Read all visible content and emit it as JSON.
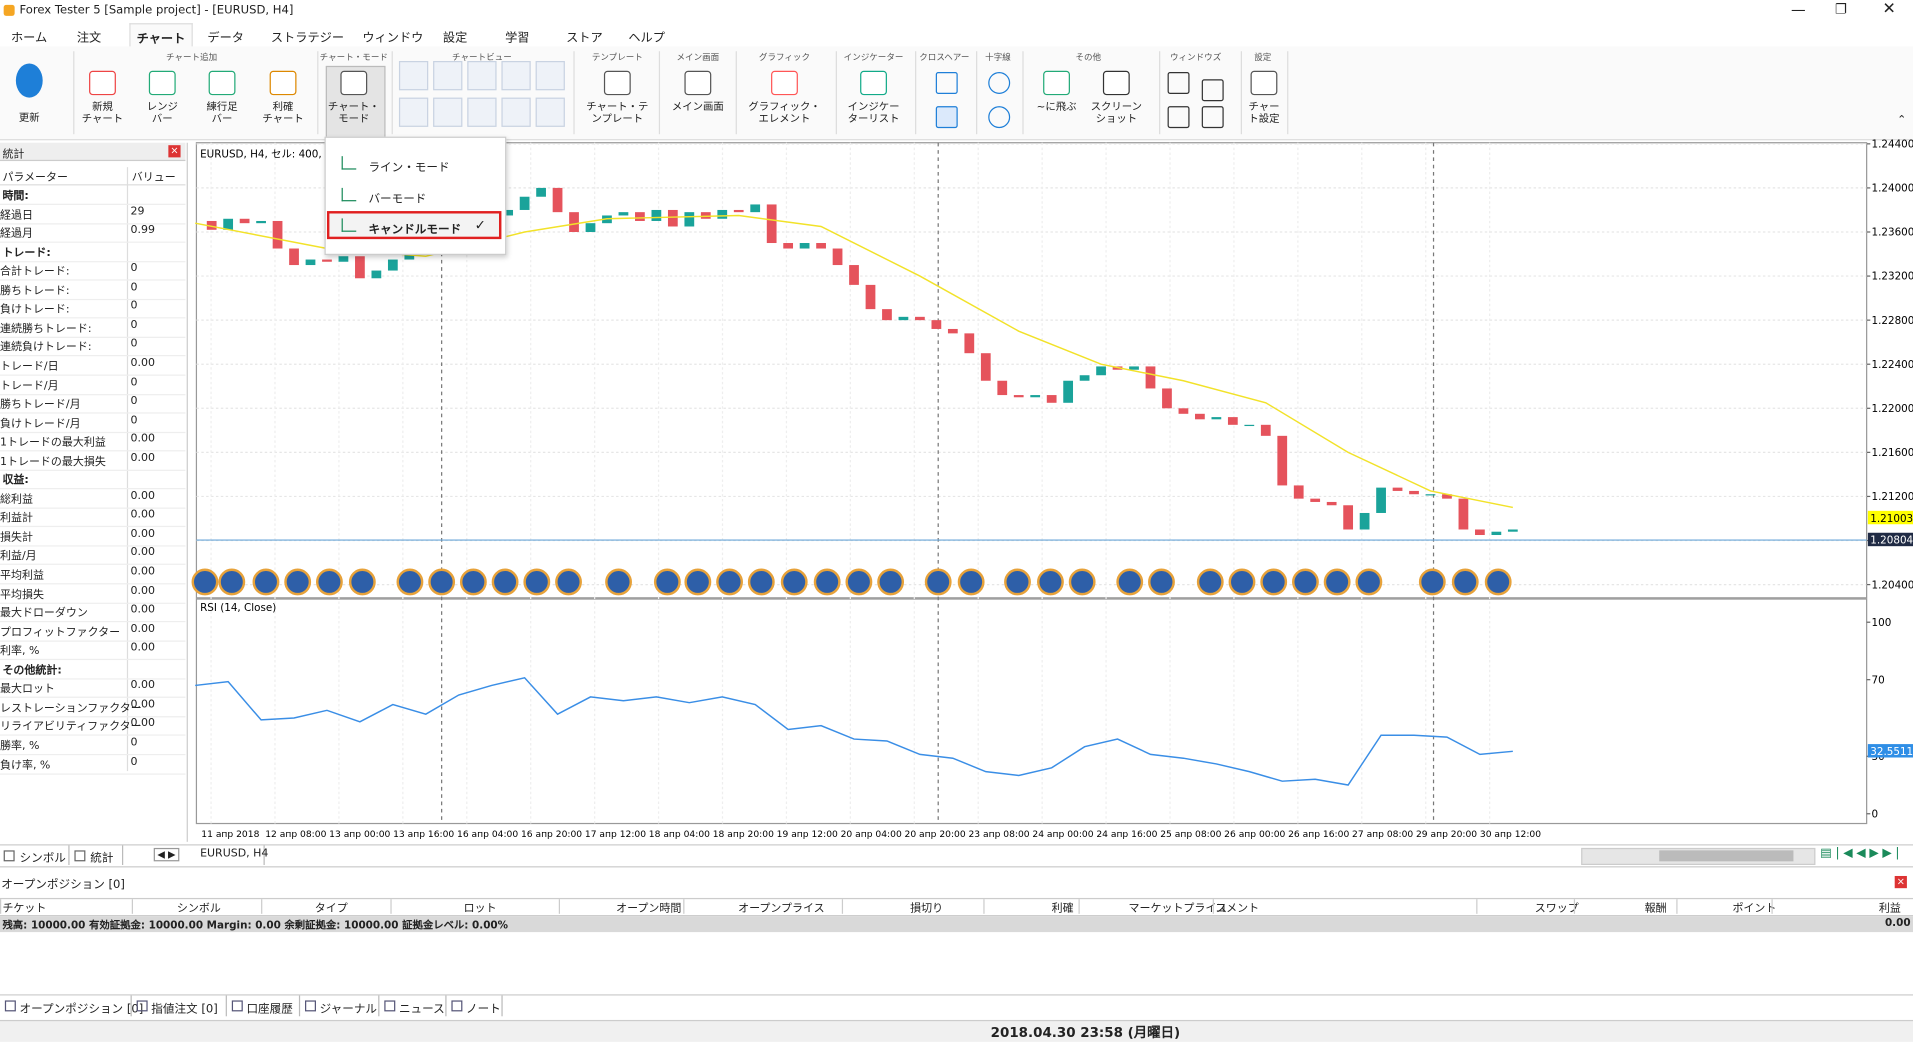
{
  "window": {
    "title": "Forex Tester 5 [Sample project] - [EURUSD, H4]"
  },
  "menu": [
    {
      "label": "ホーム"
    },
    {
      "label": "注文"
    },
    {
      "label": "チャート",
      "active": true
    },
    {
      "label": "データ"
    },
    {
      "label": "ストラテジー"
    },
    {
      "label": "ウィンドウ"
    },
    {
      "label": "設定"
    },
    {
      "label": "学習"
    },
    {
      "label": "ストア"
    },
    {
      "label": "ヘルプ"
    }
  ],
  "ribbon": {
    "groups": [
      "チャート追加",
      "チャート・モード",
      "チャートビュー",
      "テンプレート",
      "メイン画面",
      "グラフィック",
      "インジケーター",
      "クロスヘアー",
      "十字線",
      "その他",
      "ウィンドウズ",
      "設定"
    ],
    "buttons": [
      [
        "更新"
      ],
      [
        "新規",
        "チャート"
      ],
      [
        "レンジ",
        "バー"
      ],
      [
        "練行足",
        "バー"
      ],
      [
        "利確",
        "チャート"
      ],
      [
        "チャート・",
        "モード"
      ],
      [
        "チャート・テ",
        "ンプレート"
      ],
      [
        "メイン画面"
      ],
      [
        "グラフィック・",
        "エレメント"
      ],
      [
        "インジケー",
        "ターリスト"
      ],
      [
        "~に飛ぶ"
      ],
      [
        "スクリーン",
        "ショット"
      ],
      [
        "チャー",
        "ト設定"
      ]
    ]
  },
  "dropdown": [
    {
      "label": "ライン・モード"
    },
    {
      "label": "バーモード"
    },
    {
      "label": "キャンドルモード",
      "checked": true
    }
  ],
  "stats": {
    "title": "統計",
    "header": [
      "パラメーター",
      "バリュー"
    ],
    "rows": [
      {
        "section": "時間:"
      },
      {
        "label": "経過日",
        "value": "29"
      },
      {
        "label": "経過月",
        "value": "0.99"
      },
      {
        "section": "トレード:"
      },
      {
        "label": "合計トレード:",
        "value": "0"
      },
      {
        "label": "勝ちトレード:",
        "value": "0"
      },
      {
        "label": "負けトレード:",
        "value": "0"
      },
      {
        "label": "連続勝ちトレード:",
        "value": "0"
      },
      {
        "label": "連続負けトレード:",
        "value": "0"
      },
      {
        "label": "トレード/日",
        "value": "0.00"
      },
      {
        "label": "トレード/月",
        "value": "0"
      },
      {
        "label": "勝ちトレード/月",
        "value": "0"
      },
      {
        "label": "負けトレード/月",
        "value": "0"
      },
      {
        "label": "1トレードの最大利益",
        "value": "0.00"
      },
      {
        "label": "1トレードの最大損失",
        "value": "0.00"
      },
      {
        "section": "収益:"
      },
      {
        "label": "総利益",
        "value": "0.00"
      },
      {
        "label": "利益計",
        "value": "0.00"
      },
      {
        "label": "損失計",
        "value": "0.00"
      },
      {
        "label": "利益/月",
        "value": "0.00"
      },
      {
        "label": "平均利益",
        "value": "0.00"
      },
      {
        "label": "平均損失",
        "value": "0.00"
      },
      {
        "label": "最大ドローダウン",
        "value": "0.00"
      },
      {
        "label": "プロフィットファクター",
        "value": "0.00"
      },
      {
        "label": "利率, %",
        "value": "0.00"
      },
      {
        "section": "その他統計:"
      },
      {
        "label": "最大ロット",
        "value": "0.00"
      },
      {
        "label": "レストレーションファクター",
        "value": "0.00"
      },
      {
        "label": "リライアビリティファクター",
        "value": "0.00"
      },
      {
        "label": "勝率, %",
        "value": "0"
      },
      {
        "label": "負け率, %",
        "value": "0"
      }
    ]
  },
  "left_tabs": [
    "シンボル",
    "統計"
  ],
  "chart": {
    "type": "candlestick",
    "title": "EURUSD, H4, セル: 400,",
    "tab": "EURUSD, H4",
    "color_up": "#1aa39a",
    "color_down": "#e5535c",
    "closes": [
      1.237,
      1.2362,
      1.2372,
      1.2368,
      1.237,
      1.2345,
      1.233,
      1.2335,
      1.2333,
      1.2338,
      1.2318,
      1.2325,
      1.2335,
      1.234,
      1.2345,
      1.2348,
      1.2355,
      1.2365,
      1.2375,
      1.238,
      1.2392,
      1.24,
      1.2378,
      1.236,
      1.2368,
      1.2375,
      1.2378,
      1.237,
      1.238,
      1.2365,
      1.2378,
      1.2372,
      1.238,
      1.2378,
      1.2385,
      1.235,
      1.2345,
      1.235,
      1.2345,
      1.233,
      1.2312,
      1.229,
      1.228,
      1.2283,
      1.228,
      1.2272,
      1.2268,
      1.225,
      1.2225,
      1.2212,
      1.221,
      1.2212,
      1.2205,
      1.2225,
      1.223,
      1.2238,
      1.2235,
      1.2238,
      1.2218,
      1.22,
      1.2195,
      1.219,
      1.2192,
      1.2185,
      1.2185,
      1.2175,
      1.213,
      1.2118,
      1.2115,
      1.2112,
      1.209,
      1.2105,
      1.2128,
      1.2125,
      1.2122,
      1.2122,
      1.2118,
      1.209,
      1.2085,
      1.2088,
      1.209
    ],
    "ma": {
      "color": "#f2e229",
      "x": [
        0,
        8,
        14,
        20,
        25,
        33,
        38,
        44,
        50,
        55,
        60,
        65,
        70,
        75,
        80
      ],
      "values": [
        1.2368,
        1.2345,
        1.2338,
        1.236,
        1.2372,
        1.2375,
        1.2365,
        1.232,
        1.227,
        1.224,
        1.2225,
        1.2205,
        1.216,
        1.2125,
        1.211
      ]
    },
    "ylim": [
      1.2028,
      1.2441
    ],
    "yticks": [
      {
        "value": 1.244,
        "label": "1.24400"
      },
      {
        "value": 1.24,
        "label": "1.24000"
      },
      {
        "value": 1.236,
        "label": "1.23600"
      },
      {
        "value": 1.232,
        "label": "1.23200"
      },
      {
        "value": 1.228,
        "label": "1.22800"
      },
      {
        "value": 1.224,
        "label": "1.22400"
      },
      {
        "value": 1.22,
        "label": "1.22000"
      },
      {
        "value": 1.216,
        "label": "1.21600"
      },
      {
        "value": 1.212,
        "label": "1.21200"
      },
      {
        "value": 1.208,
        "label": "1.20800"
      },
      {
        "value": 1.204,
        "label": "1.20400"
      }
    ],
    "price_labels": [
      {
        "value": 1.21003,
        "label": "1.21003",
        "color": "#ffff00"
      },
      {
        "value": 1.20804,
        "label": "1.20804",
        "color": "#1f2a44"
      }
    ],
    "x_labels": [
      "11 апр 2018",
      "12 апр 08:00",
      "13 апр 00:00",
      "13 апр 16:00",
      "16 апр 04:00",
      "16 апр 20:00",
      "17 апр 12:00",
      "18 апр 04:00",
      "18 апр 20:00",
      "19 апр 12:00",
      "20 апр 04:00",
      "20 апр 20:00",
      "23 апр 08:00",
      "24 апр 00:00",
      "24 апр 16:00",
      "25 апр 08:00",
      "26 апр 00:00",
      "26 апр 16:00",
      "27 апр 08:00",
      "29 апр 20:00",
      "30 апр 12:00"
    ],
    "rsi": {
      "title": "RSI (14, Close)",
      "color": "#3a8ee6",
      "x": [
        0,
        2,
        4,
        6,
        8,
        10,
        12,
        14,
        16,
        18,
        20,
        22,
        24,
        26,
        28,
        30,
        32,
        34,
        36,
        38,
        40,
        42,
        44,
        46,
        48,
        50,
        52,
        54,
        56,
        58,
        60,
        62,
        64,
        66,
        68,
        70,
        72,
        74,
        76,
        78,
        80
      ],
      "values": [
        67,
        69,
        49,
        50,
        54,
        48,
        57,
        52,
        62,
        67,
        71,
        52,
        61,
        59,
        61,
        58,
        61,
        57,
        44,
        46,
        39,
        38,
        31,
        29,
        22,
        20,
        24,
        35,
        39,
        31,
        29,
        26,
        22,
        17,
        18,
        15,
        41,
        41,
        40,
        31,
        32.6
      ],
      "ylim": [
        0,
        100
      ],
      "yticks": [
        0,
        30,
        70,
        100
      ],
      "current": {
        "value": 32.5511,
        "label": "32.5511"
      }
    }
  },
  "positions": {
    "title": "オープンポジション [0]",
    "columns": [
      "チケット",
      "シンボル",
      "タイプ",
      "ロット",
      "オープン時間",
      "オープンプライス",
      "損切り",
      "利確",
      "マーケットプライス",
      "コメント",
      "スワップ",
      "報酬",
      "ポイント",
      "利益"
    ],
    "balance": "残高: 10000.00 有効証拠金: 10000.00 Margin: 0.00 余剰証拠金: 10000.00 証拠金レベル: 0.00%",
    "total": "0.00"
  },
  "bottom_tabs": [
    "オープンポジション [0]",
    "指値注文 [0]",
    "口座履歴",
    "ジャーナル",
    "ニュース",
    "ノート"
  ],
  "status": {
    "time": "2018.04.30 23:58 (月曜日)"
  }
}
